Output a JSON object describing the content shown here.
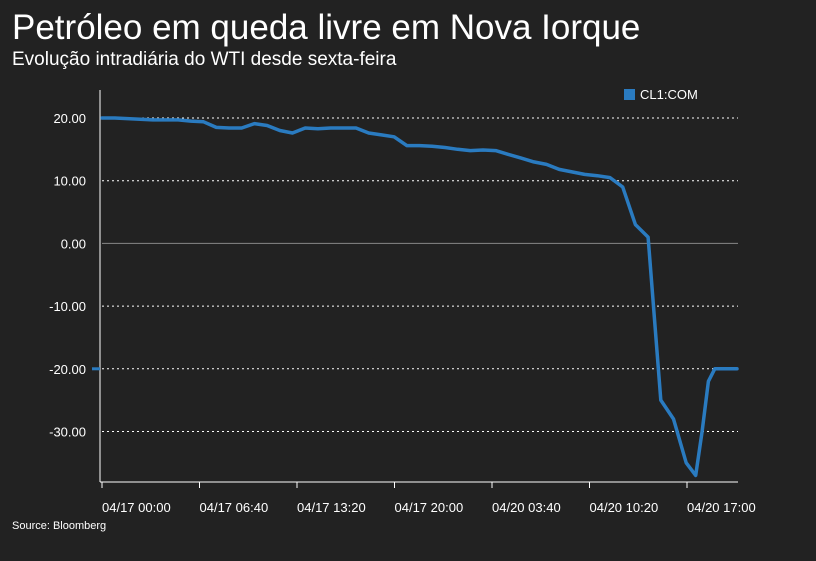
{
  "header": {
    "title": "Petróleo em queda livre em Nova Iorque",
    "subtitle": "Evolução intradiária do WTI desde sexta-feira"
  },
  "footer": {
    "source": "Source: Bloomberg"
  },
  "colors": {
    "background": "#222222",
    "series": "#2a7bc0",
    "grid": "#ffffff",
    "zero_line": "#888888"
  },
  "chart_data": {
    "type": "line",
    "title": "Petróleo em queda livre em Nova Iorque",
    "subtitle": "Evolução intradiária do WTI desde sexta-feira",
    "xlabel": "",
    "ylabel": "",
    "ylim": [
      -38,
      20
    ],
    "y_ticks": [
      20,
      10,
      0,
      -10,
      -20,
      -30
    ],
    "y_tick_labels": [
      "20.00",
      "10.00",
      "0.00",
      "-10.00",
      "-20.00",
      "-30.00"
    ],
    "x_tick_labels": [
      "04/17 00:00",
      "04/17 06:40",
      "04/17 13:20",
      "04/17 20:00",
      "04/20 03:40",
      "04/20 10:20",
      "04/20 17:00"
    ],
    "grid": true,
    "legend_position": "top-right",
    "last_value_marker": -20.0,
    "series": [
      {
        "name": "CL1:COM",
        "x": [
          0,
          0.02,
          0.04,
          0.06,
          0.08,
          0.1,
          0.12,
          0.14,
          0.16,
          0.18,
          0.2,
          0.22,
          0.24,
          0.26,
          0.28,
          0.3,
          0.32,
          0.34,
          0.36,
          0.38,
          0.4,
          0.42,
          0.44,
          0.46,
          0.48,
          0.5,
          0.52,
          0.54,
          0.56,
          0.58,
          0.6,
          0.62,
          0.64,
          0.66,
          0.68,
          0.7,
          0.72,
          0.74,
          0.76,
          0.78,
          0.8,
          0.82,
          0.84,
          0.86,
          0.88,
          0.9,
          0.92,
          0.935,
          0.945,
          0.955,
          0.965,
          0.975,
          0.985,
          0.995,
          1
        ],
        "values": [
          20.0,
          20.0,
          19.9,
          19.8,
          19.7,
          19.7,
          19.7,
          19.5,
          19.4,
          18.5,
          18.4,
          18.4,
          19.1,
          18.8,
          18.0,
          17.6,
          18.4,
          18.3,
          18.4,
          18.4,
          18.4,
          17.6,
          17.3,
          17.0,
          15.6,
          15.6,
          15.5,
          15.3,
          15.0,
          14.8,
          14.9,
          14.8,
          14.2,
          13.6,
          13.0,
          12.6,
          11.8,
          11.4,
          11.0,
          10.8,
          10.5,
          9.0,
          3.0,
          1.0,
          -25.0,
          -28.0,
          -35.0,
          -37.0,
          -30.0,
          -22.0,
          -20.0,
          -20.0,
          -20.0,
          -20.0,
          -20.0
        ]
      }
    ]
  }
}
